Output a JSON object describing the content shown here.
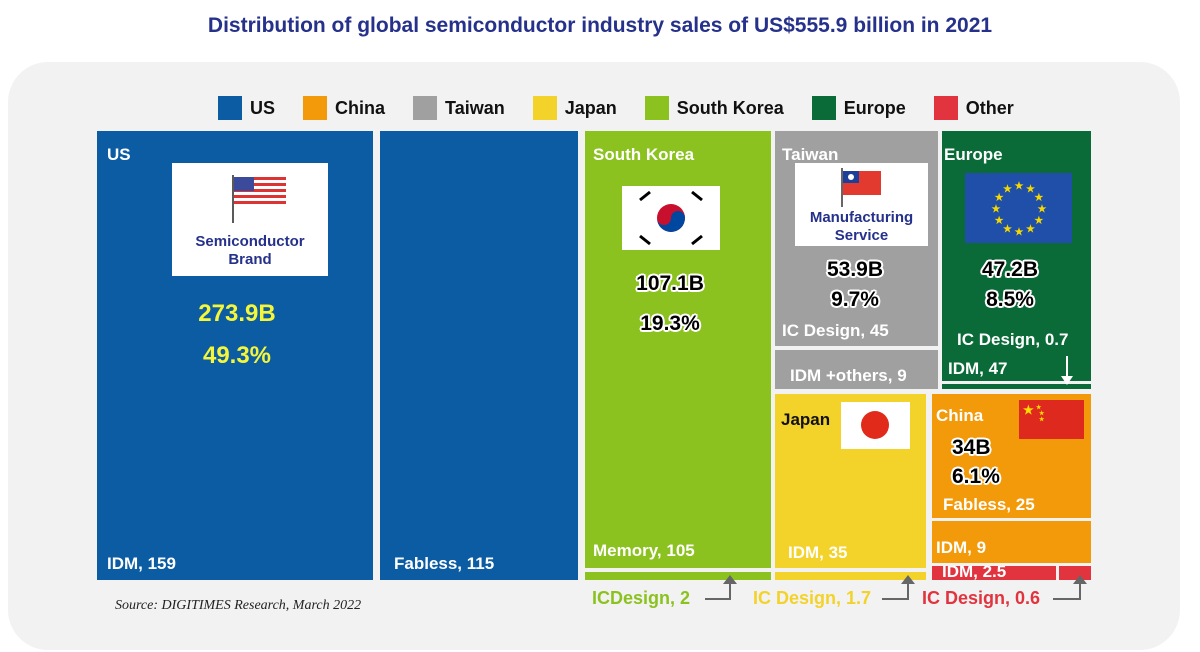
{
  "title": "Distribution of global semiconductor industry sales of US$555.9 billion in 2021",
  "source": "Source: DIGITIMES Research, March 2022",
  "colors": {
    "US": "#0b5ca3",
    "China": "#f39a0b",
    "Taiwan": "#a0a0a0",
    "Japan": "#f3d32a",
    "South Korea": "#8cc21f",
    "Europe": "#0b6b38",
    "Other": "#e2343f"
  },
  "legend": [
    "US",
    "China",
    "Taiwan",
    "Japan",
    "South Korea",
    "Europe",
    "Other"
  ],
  "chart_data": {
    "type": "treemap",
    "title": "Distribution of global semiconductor industry sales of US$555.9 billion in 2021",
    "unit": "US$ billion",
    "regions": [
      {
        "name": "US",
        "total": "273.9B",
        "share": "49.3%",
        "tagline": "Semiconductor Brand",
        "segments": [
          {
            "label": "IDM, 159",
            "value": 159
          },
          {
            "label": "Fabless, 115",
            "value": 115
          }
        ]
      },
      {
        "name": "South Korea",
        "total": "107.1B",
        "share": "19.3%",
        "segments": [
          {
            "label": "Memory, 105",
            "value": 105
          },
          {
            "label": "ICDesign, 2",
            "value": 2
          }
        ]
      },
      {
        "name": "Taiwan",
        "total": "53.9B",
        "share": "9.7%",
        "tagline": "Manufacturing Service",
        "segments": [
          {
            "label": "IC Design, 45",
            "value": 45
          },
          {
            "label": "IDM +others, 9",
            "value": 9
          }
        ]
      },
      {
        "name": "Europe",
        "total": "47.2B",
        "share": "8.5%",
        "segments": [
          {
            "label": "IDM, 47",
            "value": 47
          },
          {
            "label": "IC Design, 0.7",
            "value": 0.7
          }
        ]
      },
      {
        "name": "Japan",
        "segments": [
          {
            "label": "IDM, 35",
            "value": 35
          },
          {
            "label": "IC Design, 1.7",
            "value": 1.7
          }
        ]
      },
      {
        "name": "China",
        "total": "34B",
        "share": "6.1%",
        "segments": [
          {
            "label": "Fabless, 25",
            "value": 25
          },
          {
            "label": "IDM, 9",
            "value": 9
          }
        ]
      },
      {
        "name": "Other",
        "segments": [
          {
            "label": "IDM, 2.5",
            "value": 2.5
          },
          {
            "label": "IC Design, 0.6",
            "value": 0.6
          }
        ]
      }
    ]
  }
}
